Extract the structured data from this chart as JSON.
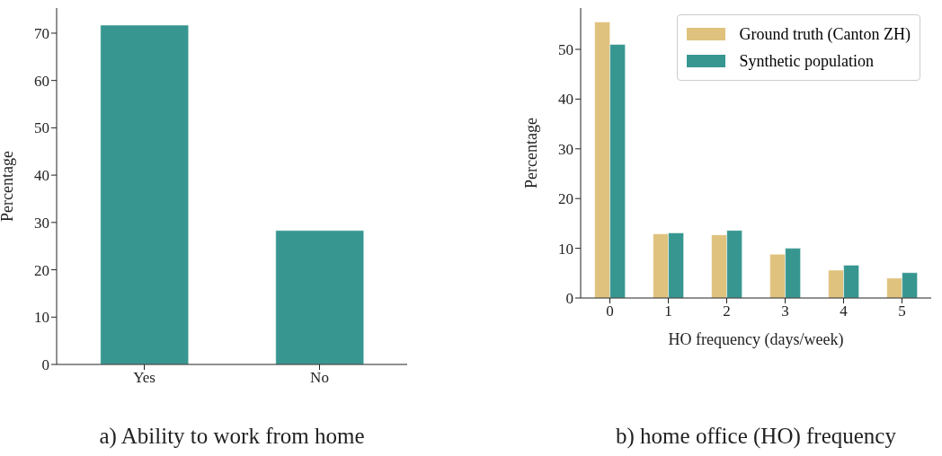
{
  "chart_data": [
    {
      "type": "bar",
      "title": "a) Ability to work from home",
      "ylabel": "Percentage",
      "categories": [
        "Yes",
        "No"
      ],
      "values": [
        71.7,
        28.3
      ],
      "color": "#379790",
      "ylim": [
        0,
        75.3
      ],
      "yticks": [
        0,
        10,
        20,
        30,
        40,
        50,
        60,
        70
      ]
    },
    {
      "type": "bar",
      "title": "b) home office (HO) frequency",
      "xlabel": "HO frequency (days/week)",
      "ylabel": "Percentage",
      "categories": [
        "0",
        "1",
        "2",
        "3",
        "4",
        "5"
      ],
      "series": [
        {
          "name": "Ground truth (Canton ZH)",
          "color": "#dfc27d",
          "values": [
            55.5,
            12.9,
            12.7,
            8.8,
            5.6,
            4.0
          ]
        },
        {
          "name": "Synthetic population",
          "color": "#379790",
          "values": [
            51.0,
            13.1,
            13.6,
            10.0,
            6.6,
            5.1
          ]
        }
      ],
      "ylim": [
        0,
        58.3
      ],
      "yticks": [
        0,
        10,
        20,
        30,
        40,
        50
      ],
      "legend": "top right"
    }
  ]
}
